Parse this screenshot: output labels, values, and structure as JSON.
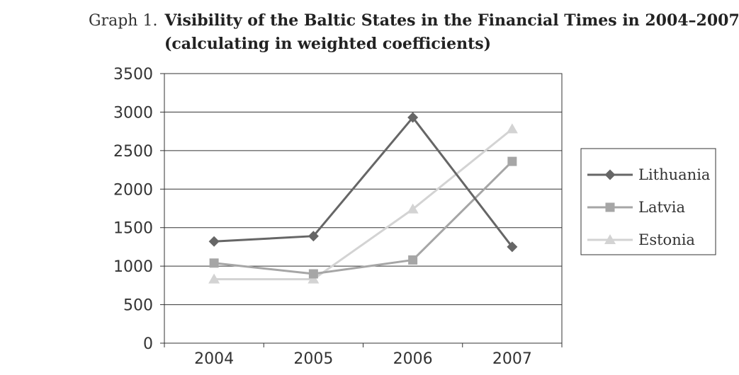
{
  "chart_data": {
    "type": "line",
    "title_prefix": "Graph 1.",
    "title": "Visibility of the Baltic States in the Financial Times in 2004–2007",
    "subtitle": "(calculating in weighted coefficients)",
    "xlabel": "",
    "ylabel": "",
    "categories": [
      "2004",
      "2005",
      "2006",
      "2007"
    ],
    "ylim": [
      0,
      3500
    ],
    "yticks": [
      0,
      500,
      1000,
      1500,
      2000,
      2500,
      3000,
      3500
    ],
    "grid": "horizontal",
    "legend_position": "right",
    "series": [
      {
        "name": "Lithuania",
        "values": [
          1320,
          1390,
          2930,
          1250
        ],
        "color": "#666666",
        "marker": "diamond"
      },
      {
        "name": "Latvia",
        "values": [
          1040,
          900,
          1080,
          2360
        ],
        "color": "#a6a6a6",
        "marker": "square"
      },
      {
        "name": "Estonia",
        "values": [
          830,
          830,
          1740,
          2780
        ],
        "color": "#d3d3d3",
        "marker": "triangle"
      }
    ]
  }
}
